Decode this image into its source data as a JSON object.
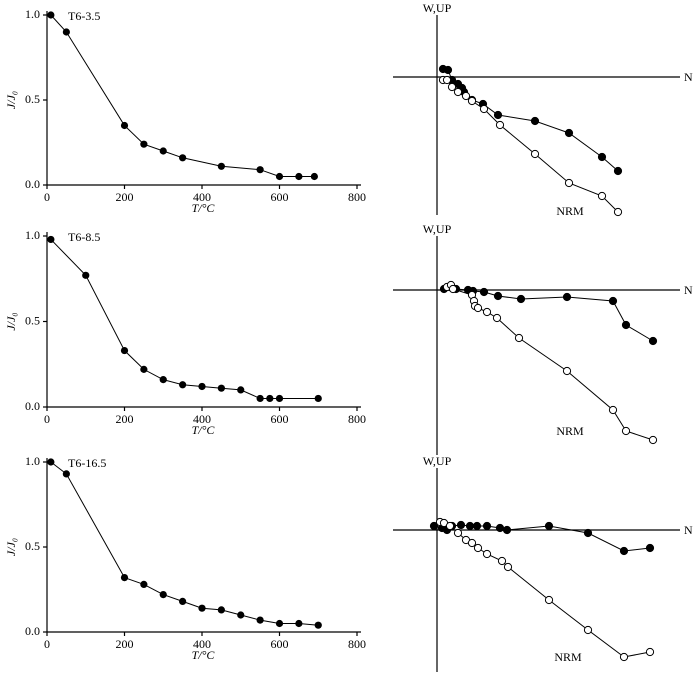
{
  "chart_data": [
    {
      "type": "line",
      "title": "T6-3.5",
      "x_label": "T/°C",
      "y_label": "J/J₀",
      "color": "#000",
      "x": [
        10,
        50,
        200,
        250,
        300,
        350,
        450,
        550,
        600,
        650,
        690
      ],
      "values": [
        1.0,
        0.9,
        0.35,
        0.24,
        0.2,
        0.16,
        0.11,
        0.09,
        0.05,
        0.05,
        0.05
      ],
      "xlim": [
        0,
        800
      ],
      "xticks": [
        0,
        200,
        400,
        600,
        800
      ],
      "ylim": [
        0,
        1
      ],
      "yticks": [
        {
          "value": 0,
          "label": "0.0"
        },
        0.5,
        {
          "value": 1,
          "label": "1.0"
        }
      ]
    },
    {
      "type": "zijderveld",
      "y_label": "W,UP",
      "x_label": "N",
      "annotation": "NRM",
      "xlim": [
        -4.4,
        24.3
      ],
      "ylim": [
        -13.8,
        6.2
      ],
      "series": [
        {
          "color": "#000",
          "fill": "#000",
          "x": [
            0.6,
            1.1,
            1.5,
            2.1,
            2.5,
            2.7,
            3.5,
            4.6,
            6.1,
            9.8,
            13.2,
            16.5,
            18.1
          ],
          "values": [
            0.8,
            0.7,
            -0.3,
            -0.7,
            -1.1,
            -1.5,
            -2.3,
            -2.7,
            -3.8,
            -4.4,
            -5.6,
            -8.0,
            -9.4
          ]
        },
        {
          "color": "#000",
          "fill": "#fff",
          "x": [
            0.6,
            1.0,
            1.5,
            2.1,
            2.9,
            3.5,
            4.7,
            6.3,
            9.8,
            13.2,
            16.5,
            18.1
          ],
          "values": [
            -0.3,
            -0.3,
            -1.0,
            -1.5,
            -1.9,
            -2.4,
            -3.2,
            -4.8,
            -7.7,
            -10.6,
            -11.9,
            -13.5
          ]
        }
      ]
    },
    {
      "type": "line",
      "title": "T6-8.5",
      "x_label": "T/°C",
      "y_label": "J/J₀",
      "color": "#000",
      "x": [
        10,
        100,
        200,
        250,
        300,
        350,
        400,
        450,
        500,
        550,
        575,
        600,
        700
      ],
      "values": [
        0.98,
        0.77,
        0.33,
        0.22,
        0.16,
        0.13,
        0.12,
        0.11,
        0.1,
        0.05,
        0.05,
        0.05,
        0.05
      ],
      "xlim": [
        0,
        800
      ],
      "xticks": [
        0,
        200,
        400,
        600,
        800
      ],
      "ylim": [
        0,
        1
      ],
      "yticks": [
        {
          "value": 0,
          "label": "0.0"
        },
        0.5,
        {
          "value": 1,
          "label": "1.0"
        }
      ]
    },
    {
      "type": "zijderveld",
      "y_label": "W,UP",
      "x_label": "N",
      "annotation": "NRM",
      "xlim": [
        -4.4,
        24.3
      ],
      "ylim": [
        -16.5,
        5.4
      ],
      "series": [
        {
          "color": "#000",
          "fill": "#000",
          "x": [
            0.7,
            1.3,
            1.9,
            3.1,
            3.6,
            4.7,
            6.1,
            8.4,
            13.0,
            17.6,
            18.9,
            21.6
          ],
          "values": [
            0.1,
            0.3,
            0.1,
            0,
            -0.1,
            -0.2,
            -0.6,
            -0.9,
            -0.7,
            -1.1,
            -3.5,
            -5.1
          ]
        },
        {
          "color": "#000",
          "fill": "#fff",
          "x": [
            1.0,
            1.4,
            1.6,
            3.5,
            3.7,
            3.8,
            4.1,
            5.0,
            6.0,
            8.2,
            13.0,
            17.6,
            18.9,
            21.6
          ],
          "values": [
            0.3,
            0.5,
            0.1,
            -0.5,
            -1.1,
            -1.6,
            -1.8,
            -2.2,
            -2.8,
            -4.8,
            -8.1,
            -12.0,
            -14.1,
            -15.0
          ]
        }
      ]
    },
    {
      "type": "line",
      "title": "T6-16.5",
      "x_label": "T/°C",
      "y_label": "J/J₀",
      "color": "#000",
      "x": [
        10,
        50,
        200,
        250,
        300,
        350,
        400,
        450,
        500,
        550,
        600,
        650,
        700
      ],
      "values": [
        1.0,
        0.93,
        0.32,
        0.28,
        0.22,
        0.18,
        0.14,
        0.13,
        0.1,
        0.07,
        0.05,
        0.05,
        0.04
      ],
      "xlim": [
        0,
        800
      ],
      "xticks": [
        0,
        200,
        400,
        600,
        800
      ],
      "ylim": [
        0,
        1
      ],
      "yticks": [
        {
          "value": 0,
          "label": "0.0"
        },
        0.5,
        {
          "value": 1,
          "label": "1.0"
        }
      ]
    },
    {
      "type": "zijderveld",
      "y_label": "W,UP",
      "x_label": "N",
      "annotation": "NRM",
      "xlim": [
        -4.4,
        24.3
      ],
      "ylim": [
        -14.2,
        6.2
      ],
      "series": [
        {
          "color": "#000",
          "fill": "#000",
          "x": [
            -0.3,
            0.5,
            1.0,
            1.5,
            2.4,
            3.3,
            4.0,
            5.0,
            6.3,
            7.0,
            11.2,
            15.1,
            18.7,
            21.3
          ],
          "values": [
            0.4,
            0.2,
            0,
            0.4,
            0.5,
            0.4,
            0.4,
            0.4,
            0.2,
            0,
            0.4,
            -0.3,
            -2.1,
            -1.8
          ]
        },
        {
          "color": "#000",
          "fill": "#fff",
          "x": [
            0.3,
            0.7,
            1.3,
            2.1,
            2.9,
            3.5,
            4.1,
            5.0,
            6.5,
            7.1,
            11.2,
            15.1,
            18.7,
            21.3
          ],
          "values": [
            0.8,
            0.7,
            0.4,
            -0.3,
            -1.0,
            -1.3,
            -1.8,
            -2.4,
            -3.1,
            -3.7,
            -7.0,
            -10.0,
            -12.7,
            -12.2
          ]
        }
      ]
    }
  ]
}
